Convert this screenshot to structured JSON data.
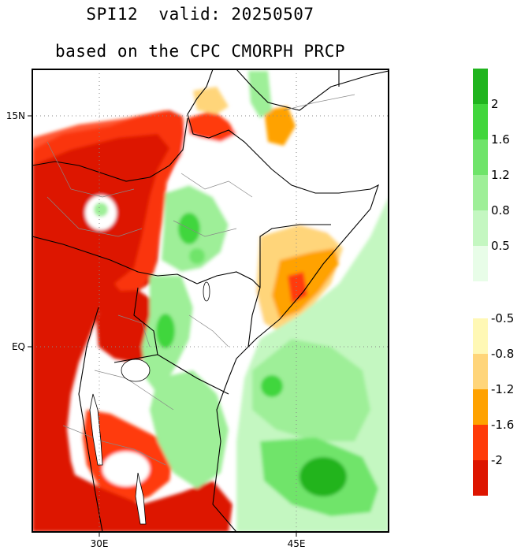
{
  "title": "SPI12  valid: 20250507",
  "subtitle": "based on the CPC CMORPH PRCP",
  "map": {
    "region": "East Africa",
    "lon_ticks": [
      "30E",
      "45E"
    ],
    "lat_ticks": [
      "15N",
      "EQ"
    ]
  },
  "colorbar_wet": {
    "colors": [
      "#e8fde8",
      "#c4f7c1",
      "#9eef98",
      "#6fe46a",
      "#41d63c",
      "#20b41e"
    ],
    "labels": [
      "0.5",
      "0.8",
      "1.2",
      "1.6",
      "2"
    ]
  },
  "colorbar_dry": {
    "colors": [
      "#fff8b5",
      "#ffd57a",
      "#ffa200",
      "#ff3b08",
      "#dd1500"
    ],
    "labels": [
      "-0.5",
      "-0.8",
      "-1.2",
      "-1.6",
      "-2"
    ]
  }
}
